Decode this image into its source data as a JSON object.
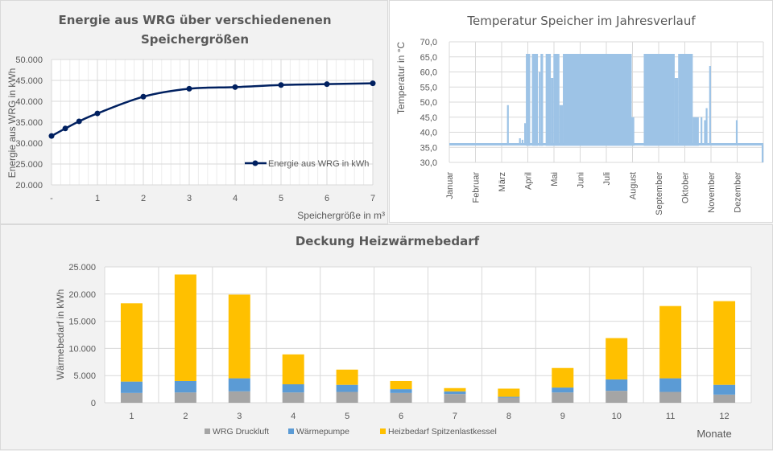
{
  "chart_data": [
    {
      "type": "line",
      "title_line1": "Energie aus WRG über verschiedenenen",
      "title_line2": "Speichergrößen",
      "xlabel": "Speichergröße in m³",
      "ylabel": "Energie aus WRG in kWh",
      "x": [
        0,
        0.3,
        0.6,
        1,
        2,
        3,
        4,
        5,
        6,
        7
      ],
      "series": [
        {
          "name": "Energie aus WRG in kWh",
          "color": "#002060",
          "values": [
            31700,
            33500,
            35200,
            37100,
            41100,
            43000,
            43400,
            43900,
            44100,
            44300
          ]
        }
      ],
      "xlim": [
        0,
        7
      ],
      "ylim": [
        20000,
        50000
      ],
      "x_ticks": [
        "-",
        "1",
        "2",
        "3",
        "4",
        "5",
        "6",
        "7"
      ],
      "y_ticks": [
        "20.000",
        "25.000",
        "30.000",
        "35.000",
        "40.000",
        "45.000",
        "50.000"
      ],
      "grid": true,
      "legend_position": "bottom-right-inside"
    },
    {
      "type": "area",
      "title": "Temperatur Speicher im Jahresverlauf",
      "xlabel": "",
      "ylabel": "Temperatur in °C",
      "ylim": [
        30,
        70
      ],
      "y_ticks": [
        "30,0",
        "35,0",
        "40,0",
        "45,0",
        "50,0",
        "55,0",
        "60,0",
        "65,0",
        "70,0"
      ],
      "x_ticks": [
        "Januar",
        "Februar",
        "März",
        "April",
        "Mai",
        "Juni",
        "Juli",
        "August",
        "September",
        "Oktober",
        "November",
        "Dezember"
      ],
      "color": "#9dc3e6",
      "baseline_temp": 36,
      "bands_description": "day ranges where temperature oscillates between baseline and max",
      "bands": [
        {
          "from_day": 89,
          "to_day": 94,
          "max": 66
        },
        {
          "from_day": 96,
          "to_day": 103,
          "max": 66
        },
        {
          "from_day": 104,
          "to_day": 106,
          "max": 60
        },
        {
          "from_day": 106,
          "to_day": 109,
          "max": 66
        },
        {
          "from_day": 112,
          "to_day": 118,
          "max": 66
        },
        {
          "from_day": 118,
          "to_day": 121,
          "max": 58
        },
        {
          "from_day": 121,
          "to_day": 128,
          "max": 66
        },
        {
          "from_day": 128,
          "to_day": 132,
          "max": 49
        },
        {
          "from_day": 132,
          "to_day": 212,
          "max": 66
        },
        {
          "from_day": 212,
          "to_day": 215,
          "max": 45
        },
        {
          "from_day": 226,
          "to_day": 262,
          "max": 66
        },
        {
          "from_day": 262,
          "to_day": 266,
          "max": 58
        },
        {
          "from_day": 266,
          "to_day": 283,
          "max": 66
        },
        {
          "from_day": 283,
          "to_day": 290,
          "max": 45
        }
      ],
      "spikes": [
        {
          "day": 68,
          "max": 49
        },
        {
          "day": 82,
          "max": 38
        },
        {
          "day": 85,
          "max": 37.5
        },
        {
          "day": 88,
          "max": 43
        },
        {
          "day": 293,
          "max": 45
        },
        {
          "day": 297,
          "max": 44
        },
        {
          "day": 299,
          "max": 48
        },
        {
          "day": 303,
          "max": 62
        },
        {
          "day": 334,
          "max": 44
        },
        {
          "day": 364,
          "max": 30
        }
      ]
    },
    {
      "type": "bar",
      "stacked": true,
      "title": "Deckung Heizwärmebedarf",
      "xlabel": "Monate",
      "ylabel": "Wärmebedarf in kWh",
      "categories": [
        "1",
        "2",
        "3",
        "4",
        "5",
        "6",
        "7",
        "8",
        "9",
        "10",
        "11",
        "12"
      ],
      "ylim": [
        0,
        25000
      ],
      "y_ticks": [
        "0",
        "5.000",
        "10.000",
        "15.000",
        "20.000",
        "25.000"
      ],
      "grid": true,
      "legend_position": "bottom",
      "series": [
        {
          "name": "WRG Druckluft",
          "color": "#a5a5a5",
          "values": [
            1800,
            1900,
            2100,
            1900,
            2000,
            1800,
            1600,
            950,
            1900,
            2200,
            2000,
            1500
          ]
        },
        {
          "name": "Wärmepumpe",
          "color": "#5b9bd5",
          "values": [
            2100,
            2100,
            2400,
            1500,
            1300,
            700,
            500,
            150,
            900,
            2100,
            2500,
            1800
          ]
        },
        {
          "name": "Heizbedarf Spitzenlastkessel",
          "color": "#ffc000",
          "values": [
            14400,
            19600,
            15400,
            5500,
            2800,
            1500,
            600,
            1500,
            3600,
            7600,
            13300,
            15400
          ]
        }
      ]
    }
  ]
}
